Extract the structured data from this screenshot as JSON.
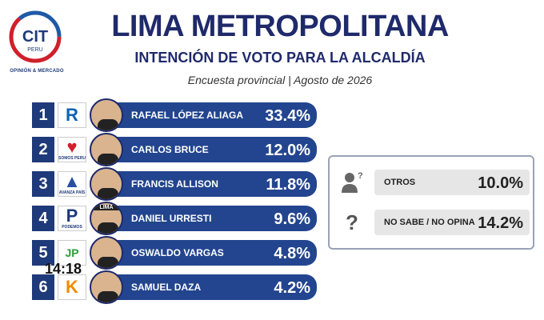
{
  "brand": {
    "logo_text": "CIT",
    "logo_sub": "PERU",
    "tagline": "OPINIÓN & MERCADO"
  },
  "header": {
    "title": "LIMA METROPOLITANA",
    "subtitle": "INTENCIÓN DE VOTO PARA LA ALCALDÍA",
    "survey": "Encuesta provincial | Agosto de 2026"
  },
  "chart_data": {
    "type": "bar",
    "categories": [
      "RAFAEL LÓPEZ ALIAGA",
      "CARLOS BRUCE",
      "FRANCIS ALLISON",
      "DANIEL URRESTI",
      "OSWALDO VARGAS",
      "SAMUEL DAZA"
    ],
    "values": [
      33.4,
      12.0,
      11.8,
      9.6,
      4.8,
      4.2
    ],
    "value_labels": [
      "33.4%",
      "12.0%",
      "11.8%",
      "9.6%",
      "4.8%",
      "4.2%"
    ],
    "ranks": [
      "1",
      "2",
      "3",
      "4",
      "5",
      "6"
    ],
    "party_icons": [
      {
        "name": "renovacion-popular-icon",
        "glyph": "R",
        "color": "#0a63b6",
        "caption": ""
      },
      {
        "name": "somos-peru-icon",
        "glyph": "♥",
        "color": "#d0202b",
        "caption": "SOMOS PERU"
      },
      {
        "name": "avanza-pais-icon",
        "glyph": "▲",
        "color": "#2a4fa0",
        "caption": "AVANZA PAÍS"
      },
      {
        "name": "podemos-icon",
        "glyph": "P",
        "color": "#1f3a7a",
        "caption": "PODEMOS"
      },
      {
        "name": "juntos-peru-icon",
        "glyph": "JP",
        "color": "#2e9a3a",
        "caption": ""
      },
      {
        "name": "fuerza-popular-icon",
        "glyph": "K",
        "color": "#f08a00",
        "caption": ""
      }
    ],
    "cap_text": "LIMA"
  },
  "others": {
    "items": [
      {
        "label": "OTROS",
        "value": "10.0%",
        "icon": "person-question-icon"
      },
      {
        "label": "NO SABE / NO OPINA",
        "value": "14.2%",
        "icon": "question-mark-icon"
      }
    ]
  },
  "overlay": {
    "clock": "14:18"
  }
}
